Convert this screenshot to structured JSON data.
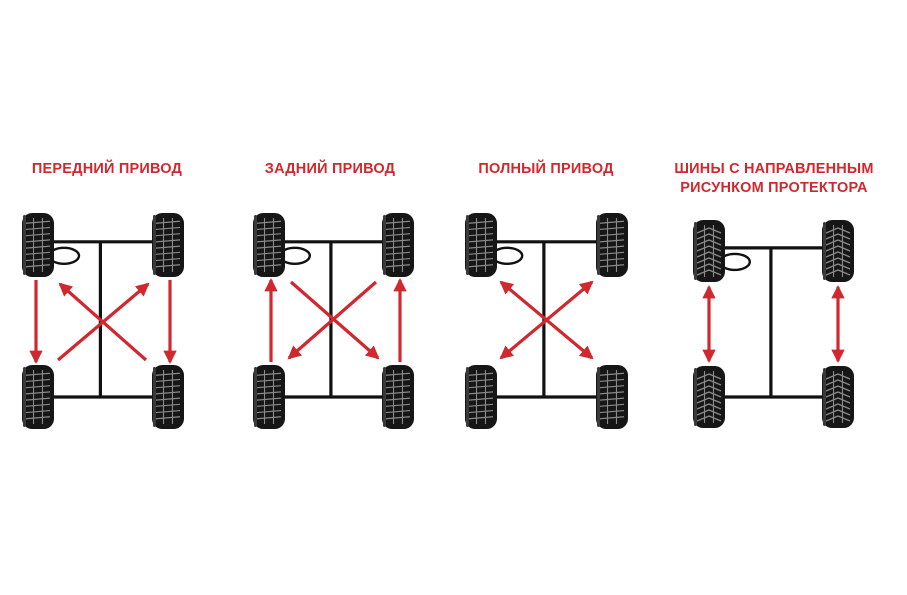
{
  "panels": [
    {
      "id": "front",
      "title_lines": [
        "ПЕРЕДНИЙ ПРИВОД"
      ],
      "tread": "asymmetric",
      "pattern": "front-wheel-drive"
    },
    {
      "id": "rear",
      "title_lines": [
        "ЗАДНИЙ ПРИВОД"
      ],
      "tread": "asymmetric",
      "pattern": "rear-wheel-drive"
    },
    {
      "id": "awd",
      "title_lines": [
        "ПОЛНЫЙ ПРИВОД"
      ],
      "tread": "asymmetric",
      "pattern": "all-wheel-drive"
    },
    {
      "id": "directional",
      "title_lines": [
        "ШИНЫ С НАПРАВЛЕННЫМ",
        "РИСУНКОМ ПРОТЕКТОРА"
      ],
      "tread": "directional",
      "pattern": "directional-front-back"
    }
  ],
  "colors": {
    "title": "#d0282e",
    "arrow": "#d0282e",
    "chassis": "#111111",
    "tire": "#161616",
    "tread": "#8a8a8a",
    "background": "#ffffff"
  },
  "icons": [
    "tire-icon",
    "steering-wheel-icon",
    "rotation-arrow"
  ]
}
